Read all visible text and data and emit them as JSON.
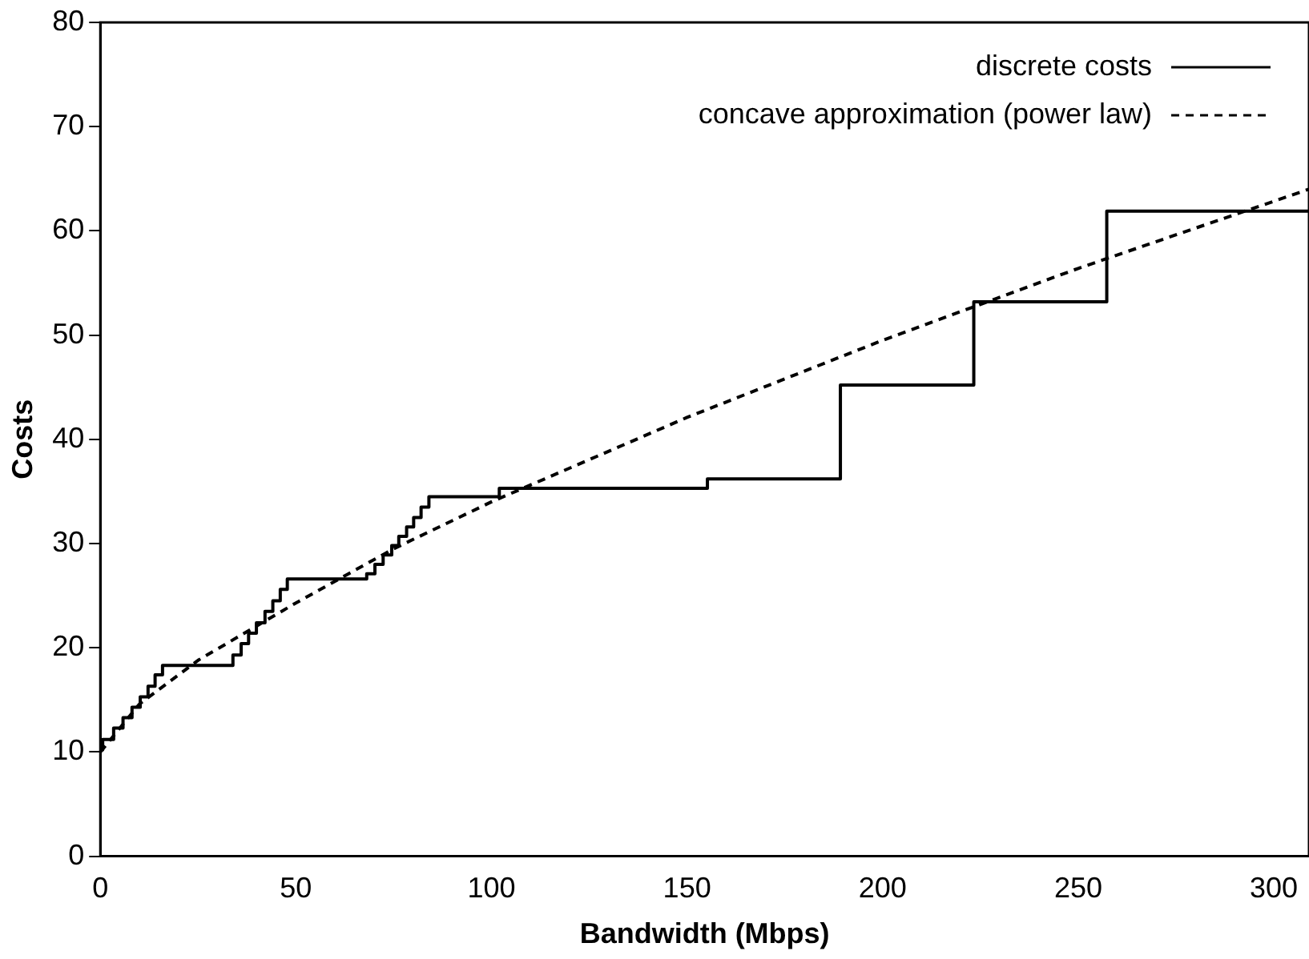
{
  "chart_data": {
    "type": "step",
    "xlabel": "Bandwidth (Mbps)",
    "ylabel": "Costs",
    "xlim": [
      0,
      309
    ],
    "xticks": [
      0,
      50,
      100,
      150,
      200,
      250,
      300
    ],
    "ylim": [
      0,
      80
    ],
    "yticks": [
      0,
      10,
      20,
      30,
      40,
      50,
      60,
      70,
      80
    ],
    "legend": "top right",
    "marker": "none",
    "series": [
      {
        "name": "discrete costs",
        "color": "#000000",
        "line_style": "solid",
        "x": [
          0,
          0.6,
          3.4,
          5.8,
          8.1,
          10.2,
          12.2,
          14.0,
          15.9,
          33.9,
          36.0,
          37.9,
          39.9,
          42.1,
          44.1,
          46.0,
          47.8,
          49.9,
          68.1,
          70.2,
          72.3,
          74.5,
          76.3,
          78.3,
          80.1,
          82.0,
          84.0,
          102,
          155.2,
          189.2,
          223.3,
          257.3,
          309
        ],
        "values": [
          10.2,
          11.2,
          12.3,
          13.3,
          14.3,
          15.3,
          16.3,
          17.4,
          18.3,
          19.3,
          20.4,
          21.4,
          22.4,
          23.5,
          24.5,
          25.6,
          26.6,
          26.6,
          27.1,
          28.0,
          28.9,
          29.8,
          30.7,
          31.6,
          32.5,
          33.5,
          34.5,
          35.3,
          36.2,
          45.2,
          53.2,
          61.9,
          61.9
        ]
      },
      {
        "name": "concave approximation (power law)",
        "type": "line",
        "color": "#000000",
        "line_style": "dashed",
        "x": [
          0,
          10,
          25,
          50,
          75,
          100,
          150,
          200,
          250,
          309
        ],
        "values": [
          10,
          14.6,
          18.8,
          24.3,
          29.5,
          34.0,
          42.1,
          49.5,
          56.4,
          64.0
        ]
      }
    ]
  }
}
